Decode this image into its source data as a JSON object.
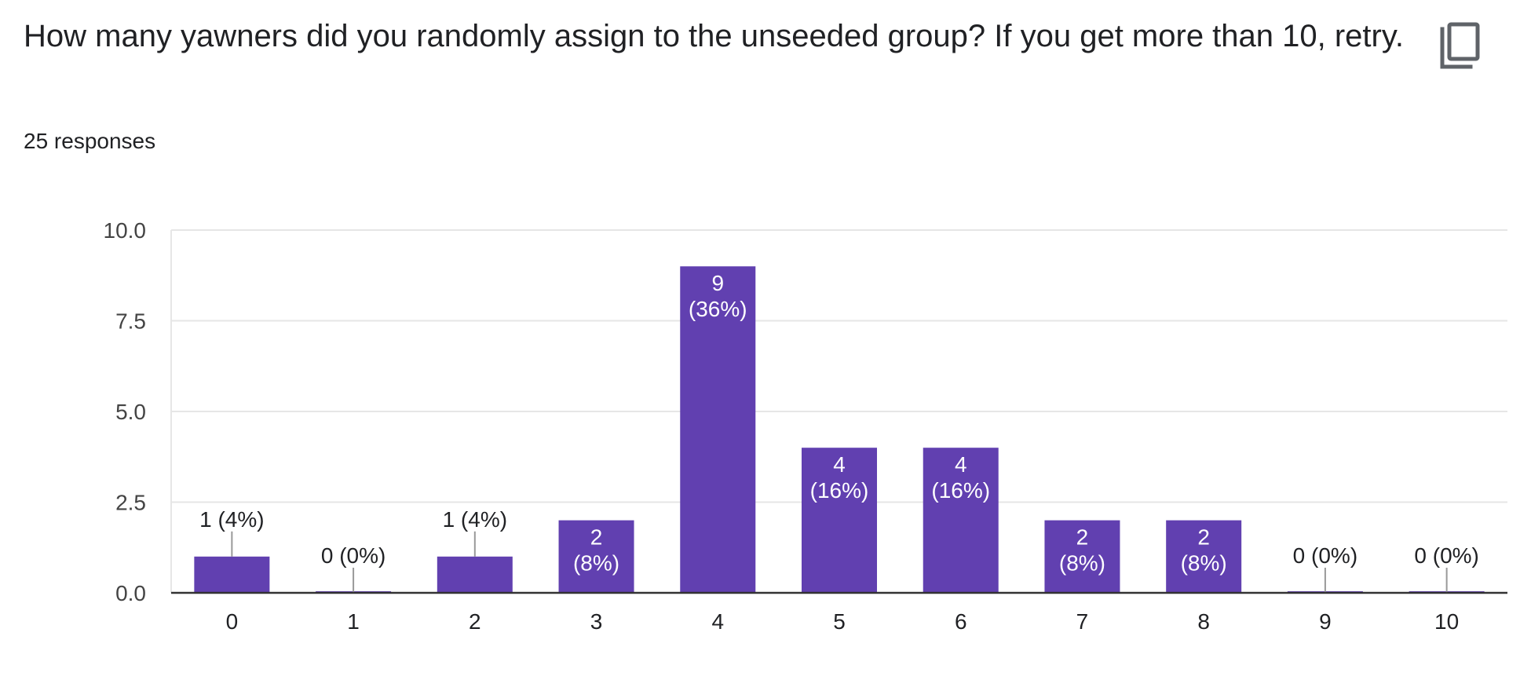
{
  "question": {
    "title": "How many yawners did you randomly assign to the unseeded group? If you get more than 10, retry.",
    "response_count": "25 responses"
  },
  "icons": {
    "copy": "copy-icon"
  },
  "colors": {
    "bar": "#6140B0",
    "grid": "#e6e6e6",
    "axis": "#333333",
    "leader": "#999999"
  },
  "chart_data": {
    "type": "bar",
    "categories": [
      "0",
      "1",
      "2",
      "3",
      "4",
      "5",
      "6",
      "7",
      "8",
      "9",
      "10"
    ],
    "values": [
      1,
      0,
      1,
      2,
      9,
      4,
      4,
      2,
      2,
      0,
      0
    ],
    "percents": [
      "4%",
      "0%",
      "4%",
      "8%",
      "36%",
      "16%",
      "16%",
      "8%",
      "8%",
      "0%",
      "0%"
    ],
    "yticks": [
      "0.0",
      "2.5",
      "5.0",
      "7.5",
      "10.0"
    ],
    "ylim": [
      0,
      10
    ],
    "grid": true
  }
}
